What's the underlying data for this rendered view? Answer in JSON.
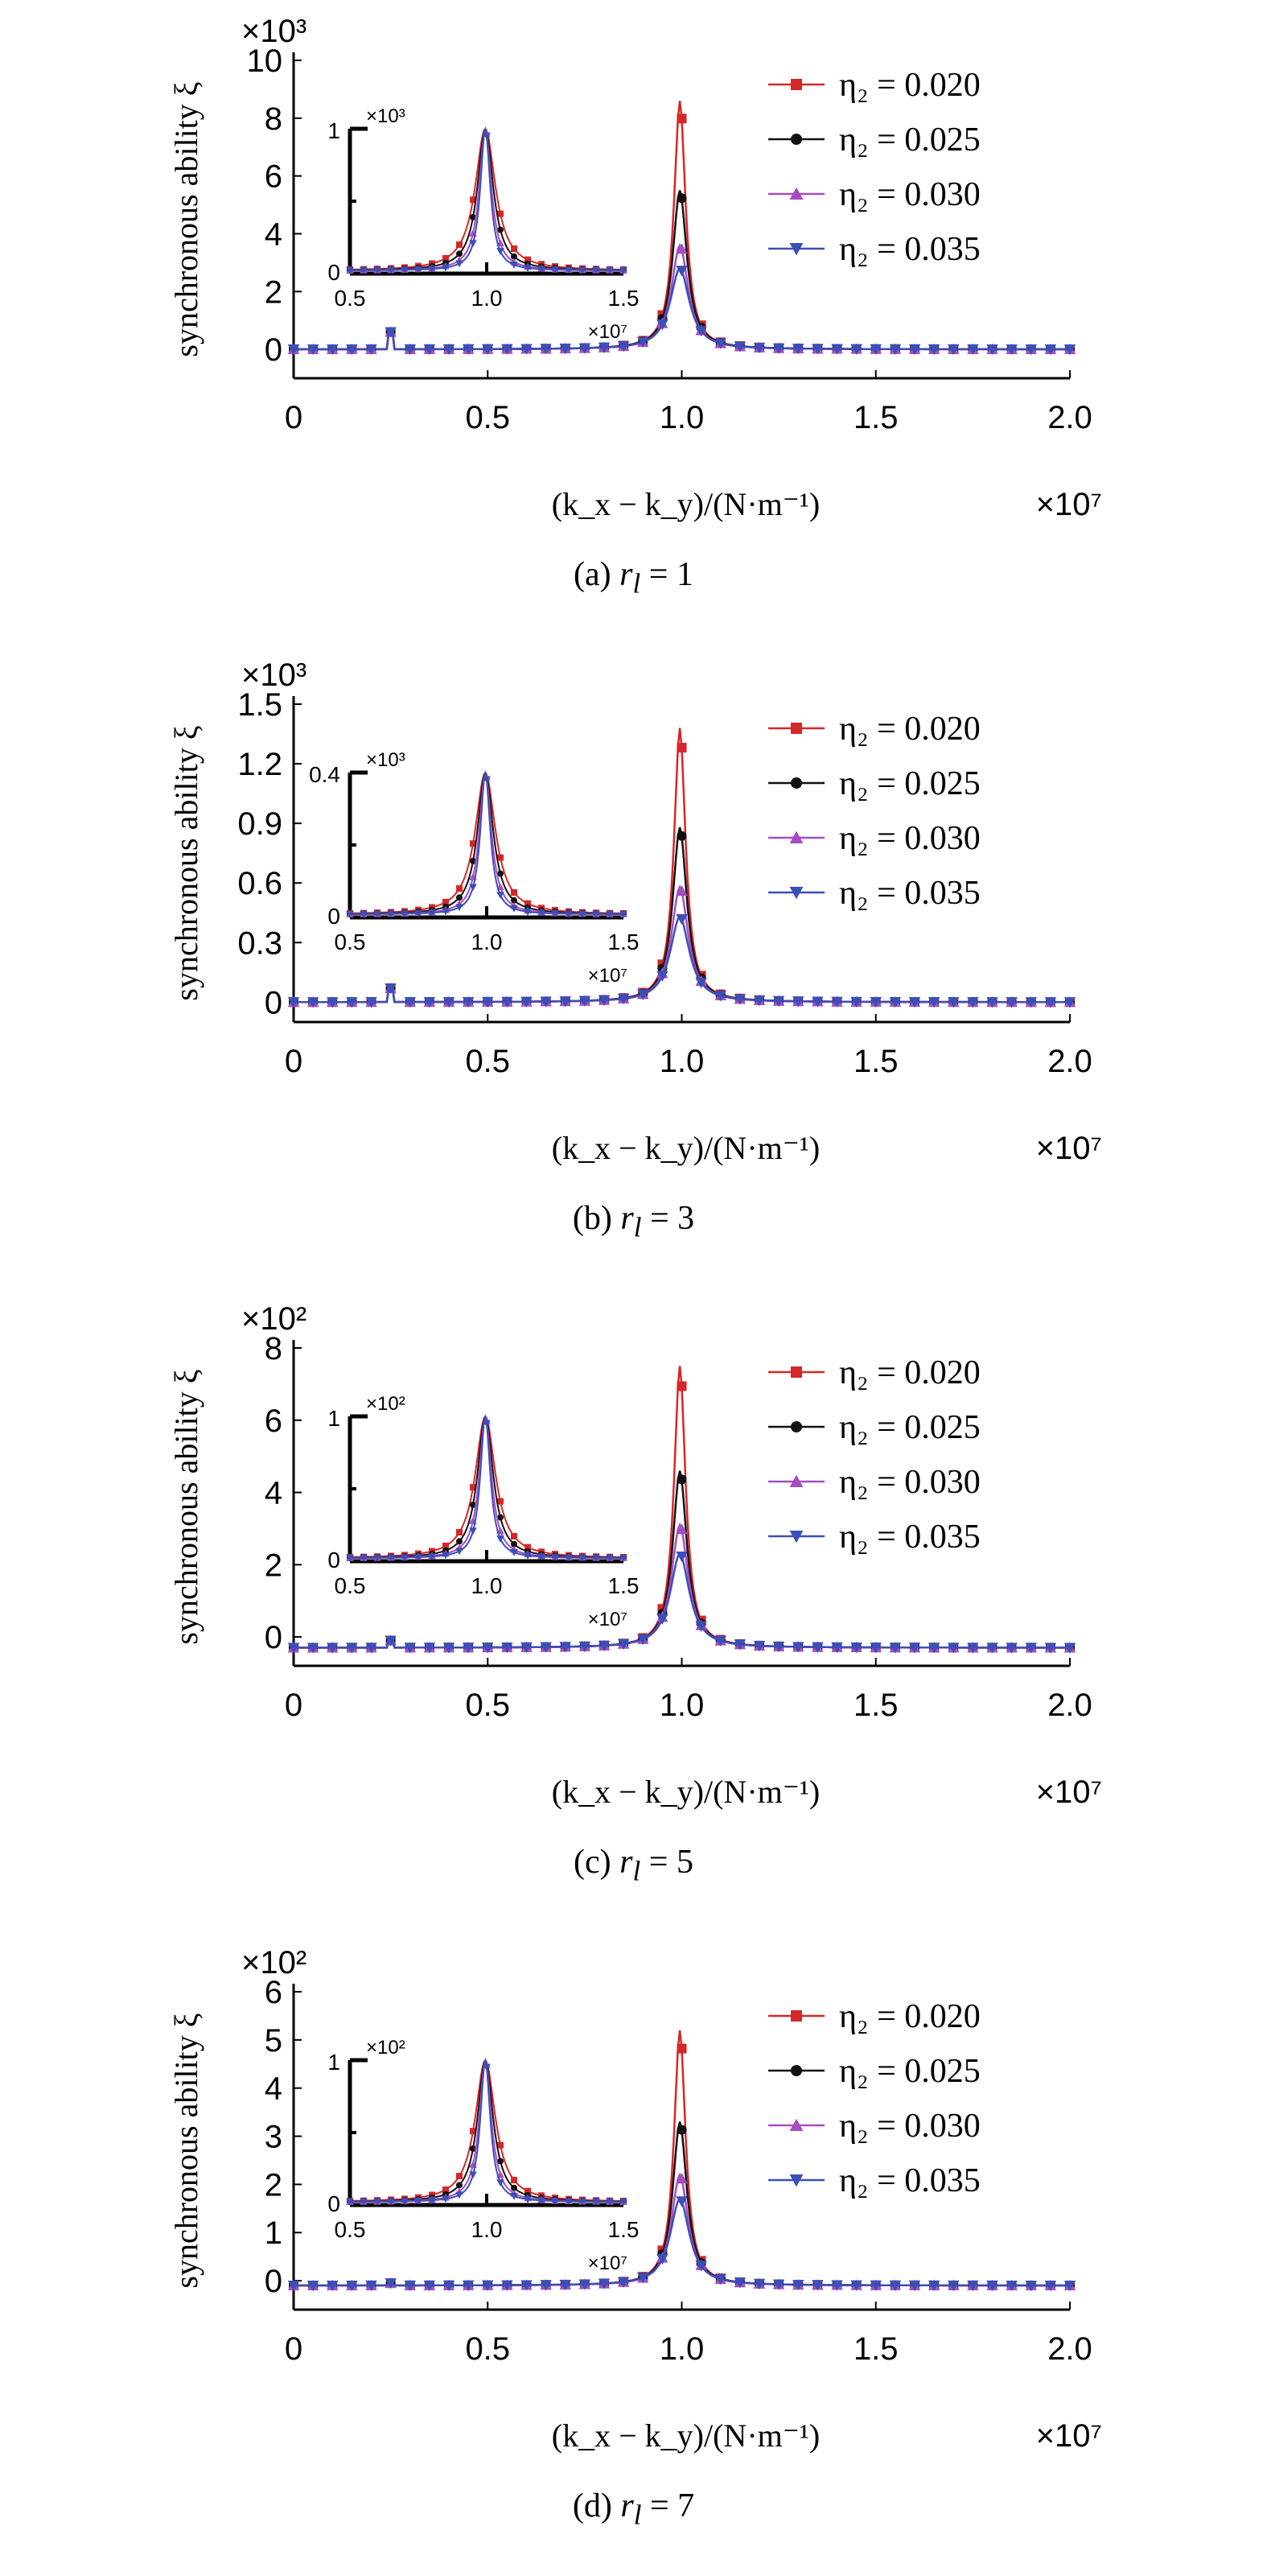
{
  "chart_data": [
    {
      "type": "line",
      "caption": {
        "prefix": "(a) ",
        "var": "r",
        "sub": "l",
        "suffix": " = 1"
      },
      "ylabel": "synchronous ability ξ",
      "xlabel": "(k_x − k_y)/(N·m⁻¹)",
      "x_multiplier": "×10⁷",
      "y_multiplier": "×10³",
      "xlim": [
        0,
        2.0
      ],
      "ylim": [
        -1,
        10
      ],
      "x_ticks": [
        "0",
        "0.5",
        "1.0",
        "1.5",
        "2.0"
      ],
      "y_ticks": [
        "0",
        "2",
        "4",
        "6",
        "8",
        "10"
      ],
      "peaks": [
        8.6,
        5.5,
        3.6,
        2.8
      ],
      "baseline": 0,
      "small_bump": 0.6,
      "inset": {
        "x_ticks": [
          "0.5",
          "1.0",
          "1.5"
        ],
        "y_ticks": [
          "0",
          "1"
        ],
        "y_multiplier": "×10³",
        "x_multiplier": "×10⁷"
      },
      "legend_position": "top-right",
      "series": [
        {
          "name": "η₂ = 0.020",
          "color": "#d62728",
          "marker": "square"
        },
        {
          "name": "η₂ = 0.025",
          "color": "#111111",
          "marker": "circle"
        },
        {
          "name": "η₂ = 0.030",
          "color": "#a64dc2",
          "marker": "triangle-up"
        },
        {
          "name": "η₂ = 0.035",
          "color": "#3b4fb8",
          "marker": "triangle-down"
        }
      ]
    },
    {
      "type": "line",
      "caption": {
        "prefix": "(b) ",
        "var": "r",
        "sub": "l",
        "suffix": " = 3"
      },
      "ylabel": "synchronous ability ξ",
      "xlabel": "(k_x − k_y)/(N·m⁻¹)",
      "x_multiplier": "×10⁷",
      "y_multiplier": "×10³",
      "xlim": [
        0,
        2.0
      ],
      "ylim": [
        -0.1,
        1.5
      ],
      "x_ticks": [
        "0",
        "0.5",
        "1.0",
        "1.5",
        "2.0"
      ],
      "y_ticks": [
        "0",
        "0.3",
        "0.6",
        "0.9",
        "1.2",
        "1.5"
      ],
      "peaks": [
        1.38,
        0.88,
        0.58,
        0.43
      ],
      "baseline": 0,
      "small_bump": 0.07,
      "inset": {
        "x_ticks": [
          "0.5",
          "1.0",
          "1.5"
        ],
        "y_ticks": [
          "0",
          "0.4"
        ],
        "y_multiplier": "×10³",
        "x_multiplier": "×10⁷"
      },
      "legend_position": "top-right",
      "series": [
        {
          "name": "η₂ = 0.020",
          "color": "#d62728",
          "marker": "square"
        },
        {
          "name": "η₂ = 0.025",
          "color": "#111111",
          "marker": "circle"
        },
        {
          "name": "η₂ = 0.030",
          "color": "#a64dc2",
          "marker": "triangle-up"
        },
        {
          "name": "η₂ = 0.035",
          "color": "#3b4fb8",
          "marker": "triangle-down"
        }
      ]
    },
    {
      "type": "line",
      "caption": {
        "prefix": "(c) ",
        "var": "r",
        "sub": "l",
        "suffix": " = 5"
      },
      "ylabel": "synchronous ability ξ",
      "xlabel": "(k_x − k_y)/(N·m⁻¹)",
      "x_multiplier": "×10⁷",
      "y_multiplier": "×10²",
      "xlim": [
        0,
        2.0
      ],
      "ylim": [
        -0.8,
        8
      ],
      "x_ticks": [
        "0",
        "0.5",
        "1.0",
        "1.5",
        "2.0"
      ],
      "y_ticks": [
        "0",
        "2",
        "4",
        "6",
        "8"
      ],
      "peaks": [
        7.5,
        4.6,
        3.1,
        2.3
      ],
      "baseline": -0.3,
      "small_bump": -0.1,
      "inset": {
        "x_ticks": [
          "0.5",
          "1.0",
          "1.5"
        ],
        "y_ticks": [
          "0",
          "1"
        ],
        "y_multiplier": "×10²",
        "x_multiplier": "×10⁷"
      },
      "legend_position": "top-right",
      "series": [
        {
          "name": "η₂ = 0.020",
          "color": "#d62728",
          "marker": "square"
        },
        {
          "name": "η₂ = 0.025",
          "color": "#111111",
          "marker": "circle"
        },
        {
          "name": "η₂ = 0.030",
          "color": "#a64dc2",
          "marker": "triangle-up"
        },
        {
          "name": "η₂ = 0.035",
          "color": "#3b4fb8",
          "marker": "triangle-down"
        }
      ]
    },
    {
      "type": "line",
      "caption": {
        "prefix": "(d) ",
        "var": "r",
        "sub": "l",
        "suffix": " = 7"
      },
      "ylabel": "synchronous ability ξ",
      "xlabel": "(k_x − k_y)/(N·m⁻¹)",
      "x_multiplier": "×10⁷",
      "y_multiplier": "×10²",
      "xlim": [
        0,
        2.0
      ],
      "ylim": [
        -0.6,
        6
      ],
      "x_ticks": [
        "0",
        "0.5",
        "1.0",
        "1.5",
        "2.0"
      ],
      "y_ticks": [
        "0",
        "1",
        "2",
        "3",
        "4",
        "5",
        "6"
      ],
      "peaks": [
        5.2,
        3.3,
        2.2,
        1.7
      ],
      "baseline": -0.1,
      "small_bump": -0.05,
      "inset": {
        "x_ticks": [
          "0.5",
          "1.0",
          "1.5"
        ],
        "y_ticks": [
          "0",
          "1"
        ],
        "y_multiplier": "×10²",
        "x_multiplier": "×10⁷"
      },
      "legend_position": "top-right",
      "series": [
        {
          "name": "η₂ = 0.020",
          "color": "#d62728",
          "marker": "square"
        },
        {
          "name": "η₂ = 0.025",
          "color": "#111111",
          "marker": "circle"
        },
        {
          "name": "η₂ = 0.030",
          "color": "#a64dc2",
          "marker": "triangle-up"
        },
        {
          "name": "η₂ = 0.035",
          "color": "#3b4fb8",
          "marker": "triangle-down"
        }
      ]
    }
  ]
}
